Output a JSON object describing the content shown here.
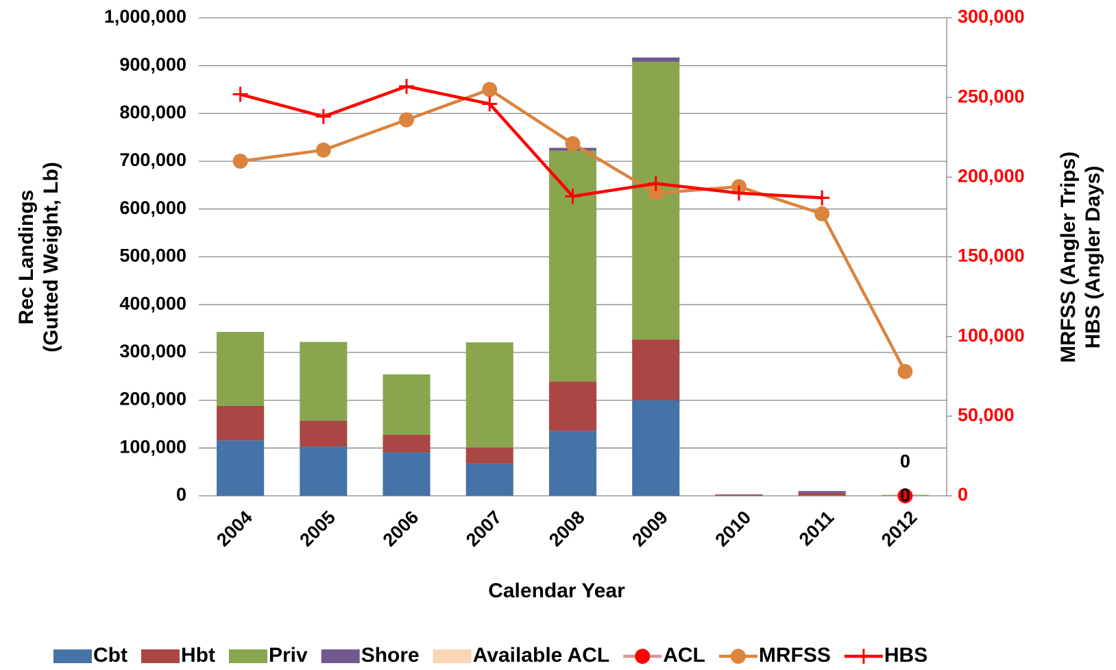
{
  "chart_data": {
    "type": "bar",
    "stacked": true,
    "xlabel": "Calendar Year",
    "ylabel": [
      "Rec Landings",
      "(Gutted Weight, Lb)"
    ],
    "y2label": [
      "MRFSS (Angler Trips)",
      "HBS (Angler Days)"
    ],
    "categories": [
      "2004",
      "2005",
      "2006",
      "2007",
      "2008",
      "2009",
      "2010",
      "2011",
      "2012"
    ],
    "ylim": [
      0,
      1000000
    ],
    "yticks": [
      0,
      {
        "value": 100000,
        "label": "100,000"
      },
      {
        "value": 200000,
        "label": "200,000"
      },
      {
        "value": 300000,
        "label": "300,000"
      },
      {
        "value": 400000,
        "label": "400,000"
      },
      {
        "value": 500000,
        "label": "500,000"
      },
      {
        "value": 600000,
        "label": "600,000"
      },
      {
        "value": 700000,
        "label": "700,000"
      },
      {
        "value": 800000,
        "label": "800,000"
      },
      {
        "value": 900000,
        "label": "900,000"
      },
      {
        "value": 1000000,
        "label": "1,000,000"
      }
    ],
    "y2lim": [
      0,
      300000
    ],
    "y2ticks": [
      0,
      {
        "value": 50000,
        "label": "50,000"
      },
      {
        "value": 100000,
        "label": "100,000"
      },
      {
        "value": 150000,
        "label": "150,000"
      },
      {
        "value": 200000,
        "label": "200,000"
      },
      {
        "value": 250000,
        "label": "250,000"
      },
      {
        "value": 300000,
        "label": "300,000"
      }
    ],
    "y2color": "#ff0000",
    "grid": true,
    "legend": "bottom",
    "series": [
      {
        "name": "Cbt",
        "kind": "bar",
        "color": "#4572a7",
        "values": [
          116000,
          103000,
          91000,
          67000,
          136000,
          200000,
          1000,
          1000,
          0
        ]
      },
      {
        "name": "Hbt",
        "kind": "bar",
        "color": "#aa4643",
        "values": [
          72000,
          54000,
          37000,
          34000,
          103000,
          127000,
          2000,
          5000,
          0
        ]
      },
      {
        "name": "Priv",
        "kind": "bar",
        "color": "#89a54e",
        "values": [
          155000,
          165000,
          126000,
          220000,
          483000,
          581000,
          0,
          0,
          2000
        ]
      },
      {
        "name": "Shore",
        "kind": "bar",
        "color": "#71588f",
        "values": [
          0,
          0,
          0,
          0,
          6000,
          9000,
          0,
          4000,
          0
        ]
      },
      {
        "name": "Available ACL",
        "kind": "bar",
        "color": "#fcd5b5",
        "values": [
          null,
          null,
          null,
          null,
          null,
          null,
          null,
          null,
          0
        ],
        "labels": true
      },
      {
        "name": "ACL",
        "kind": "line",
        "marker": "circle",
        "color": "#ff0000",
        "line_color": "#d99694",
        "values": [
          null,
          null,
          null,
          null,
          null,
          null,
          null,
          null,
          0
        ],
        "labels": true
      },
      {
        "name": "MRFSS",
        "kind": "line",
        "marker": "circle",
        "axis": "y2",
        "color": "#db843d",
        "values": [
          210000,
          217000,
          236000,
          255000,
          221000,
          190000,
          194000,
          177000,
          78000
        ]
      },
      {
        "name": "HBS",
        "kind": "line",
        "marker": "plus",
        "axis": "y2",
        "color": "#ff0000",
        "values": [
          252000,
          238000,
          257000,
          246000,
          188000,
          196000,
          190000,
          187000,
          null
        ]
      }
    ]
  }
}
